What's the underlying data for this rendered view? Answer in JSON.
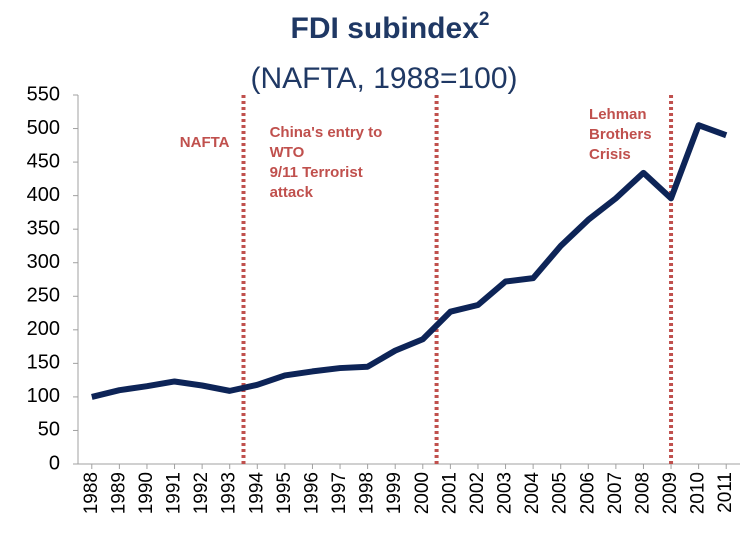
{
  "chart_data": {
    "type": "line",
    "title": "FDI subindex",
    "title_superscript": "2",
    "subtitle": "(NAFTA, 1988=100)",
    "x": [
      1988,
      1989,
      1990,
      1991,
      1992,
      1993,
      1994,
      1995,
      1996,
      1997,
      1998,
      1999,
      2000,
      2001,
      2002,
      2003,
      2004,
      2005,
      2006,
      2007,
      2008,
      2009,
      2010,
      2011
    ],
    "series": [
      {
        "color": "#0d2457",
        "values": [
          100,
          110,
          116,
          123,
          117,
          109,
          118,
          132,
          138,
          143,
          145,
          169,
          186,
          227,
          237,
          272,
          277,
          325,
          364,
          396,
          434,
          396,
          505,
          490
        ]
      }
    ],
    "xlim": [
      1987.5,
      2011.5
    ],
    "xticks": [
      1988,
      1989,
      1990,
      1991,
      1992,
      1993,
      1994,
      1995,
      1996,
      1997,
      1998,
      1999,
      2000,
      2001,
      2002,
      2003,
      2004,
      2005,
      2006,
      2007,
      2008,
      2009,
      2010,
      2011
    ],
    "ylim": [
      0,
      550
    ],
    "yticks": [
      0,
      50,
      100,
      150,
      200,
      250,
      300,
      350,
      400,
      450,
      500,
      550
    ],
    "grid": false,
    "event_color": "#c0504d",
    "events": [
      {
        "x": 1993.5,
        "lines": [
          "NAFTA"
        ],
        "anchor": "end"
      },
      {
        "x": 2000.5,
        "lines": [
          "China's entry to",
          "WTO",
          "9/11 Terrorist",
          "attack"
        ],
        "anchor": "start-left"
      },
      {
        "x": 2009,
        "lines": [
          "Lehman",
          "Brothers",
          "Crisis"
        ],
        "anchor": "start-left"
      }
    ]
  }
}
